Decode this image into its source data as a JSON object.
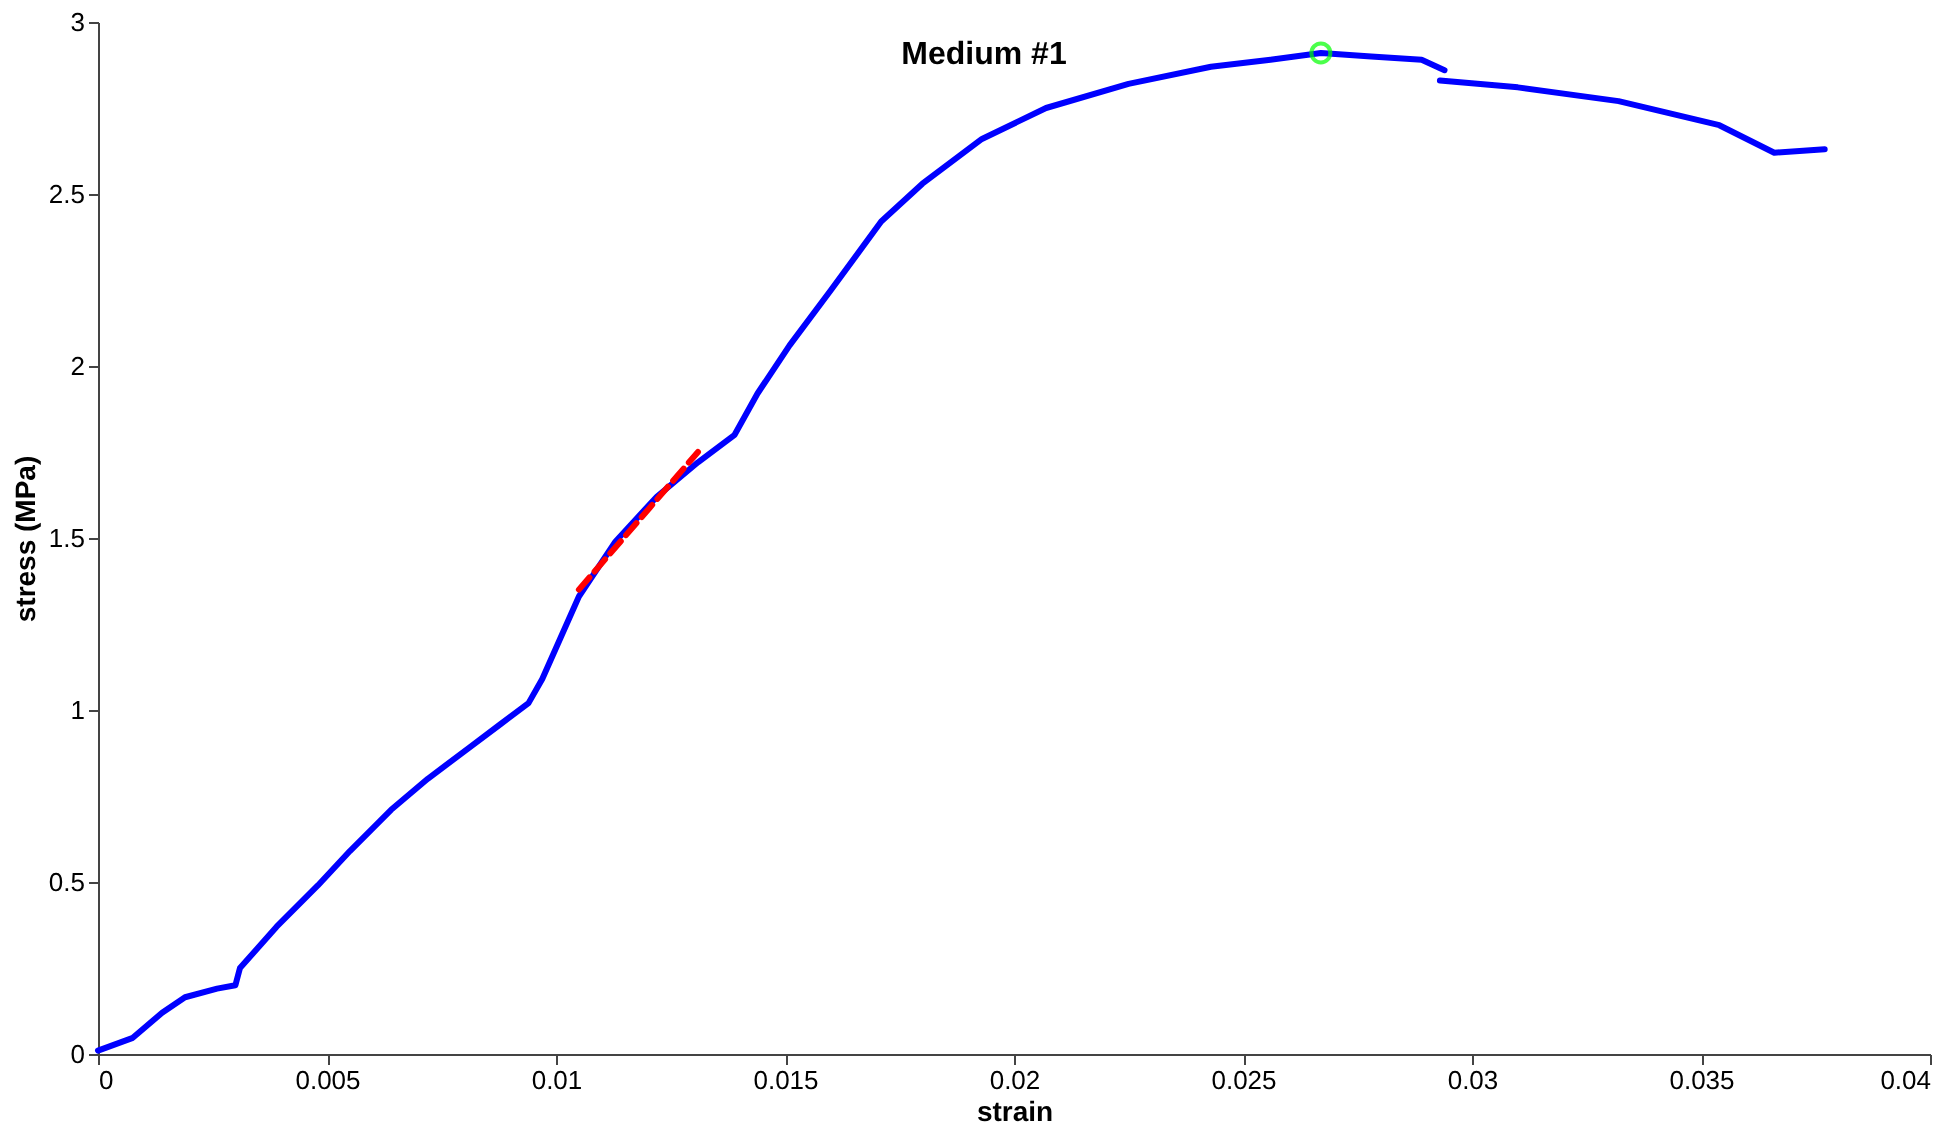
{
  "chart_data": {
    "type": "line",
    "title": "Medium #1",
    "xlabel": "strain",
    "ylabel": "stress (MPa)",
    "xlim": [
      0,
      0.04
    ],
    "xticks": [
      0,
      0.005,
      0.01,
      0.015,
      0.02,
      0.025,
      0.03,
      0.035,
      0.04
    ],
    "ylim": [
      0,
      3
    ],
    "yticks": [
      0,
      0.5,
      1,
      1.5,
      2,
      2.5,
      3
    ],
    "grid": false,
    "series": [
      {
        "color": "#0000ff",
        "line_style": "solid",
        "x": [
          0,
          0.00076,
          0.0014,
          0.0019,
          0.0026,
          0.003,
          0.0031,
          0.0039,
          0.0048,
          0.0055,
          0.0064,
          0.0072,
          0.0081,
          0.0088,
          0.0094,
          0.0097,
          0.0101,
          0.0105,
          0.0113,
          0.0122,
          0.0131,
          0.0139,
          0.0144,
          0.0151,
          0.016,
          0.0171,
          0.018,
          0.0193,
          0.0207,
          0.0225,
          0.0243,
          0.0256,
          0.0267,
          0.0278,
          0.0289,
          0.0294,
          0.02935,
          0.0293,
          0.031,
          0.0332,
          0.0354,
          0.0366,
          0.0377
        ],
        "values": [
          0.01,
          0.047,
          0.12,
          0.165,
          0.19,
          0.2,
          0.25,
          0.37,
          0.49,
          0.59,
          0.71,
          0.8,
          0.89,
          0.96,
          1.02,
          1.09,
          1.21,
          1.33,
          1.49,
          1.62,
          1.72,
          1.8,
          1.92,
          2.06,
          2.22,
          2.42,
          2.53,
          2.66,
          2.75,
          2.82,
          2.87,
          2.89,
          2.91,
          2.9,
          2.89,
          2.86,
          null,
          2.83,
          2.81,
          2.77,
          2.7,
          2.62,
          2.63
        ]
      },
      {
        "color": "#ff0000",
        "line_style": "dashed",
        "x": [
          0.0105,
          0.0131
        ],
        "values": [
          1.35,
          1.75
        ]
      },
      {
        "type": "scatter",
        "color": "#00ff00",
        "marker": "circle",
        "x": [
          0.0267
        ],
        "values": [
          2.91
        ]
      }
    ]
  }
}
